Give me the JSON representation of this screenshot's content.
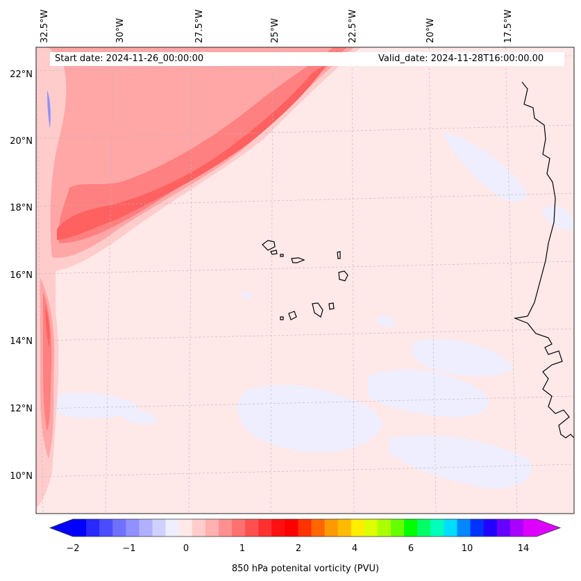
{
  "map": {
    "start_label": "Start date: 2024-11-26_00:00:00",
    "valid_label": "Valid_date: 2024-11-28T16:00:00.00",
    "lon_labels": [
      "32.5°W",
      "30°W",
      "27.5°W",
      "25°W",
      "22.5°W",
      "20°W",
      "17.5°W"
    ],
    "lat_labels": [
      "22°N",
      "20°N",
      "18°N",
      "16°N",
      "14°N",
      "12°N",
      "10°N"
    ],
    "region": "Cape Verde / West Africa coast, eastern tropical Atlantic",
    "field": "850 hPa potential vorticity",
    "gridlines": true
  },
  "colorbar": {
    "label": "850 hPa potenital vorticity (PVU)",
    "tick_labels": [
      "−2",
      "−1",
      "0",
      "1",
      "2",
      "4",
      "6",
      "10",
      "14"
    ],
    "extend": "both",
    "colors": [
      "#0000ff",
      "#2828ff",
      "#4c4cff",
      "#7070ff",
      "#9090ff",
      "#b0b0ff",
      "#d0d0ff",
      "#eeeeff",
      "#ffe8e8",
      "#ffcccc",
      "#ffb0b0",
      "#ff9090",
      "#ff7070",
      "#ff5050",
      "#ff3030",
      "#ff1010",
      "#ff0000",
      "#ff3300",
      "#ff6600",
      "#ff9900",
      "#ffbb00",
      "#ffee00",
      "#ddff00",
      "#aaff00",
      "#66ff00",
      "#00ff00",
      "#00ff66",
      "#00ffbb",
      "#00ddff",
      "#0088ff",
      "#0033ff",
      "#2200ff",
      "#6600ff",
      "#aa00ff",
      "#dd00ff"
    ]
  },
  "colors": {
    "background_field": "#ffe8e8",
    "band_light": "#ffcccc",
    "band_mid": "#ffa6a6",
    "band_strong": "#ff8080",
    "band_core": "#ff6060",
    "negative": "#eeeeff"
  }
}
